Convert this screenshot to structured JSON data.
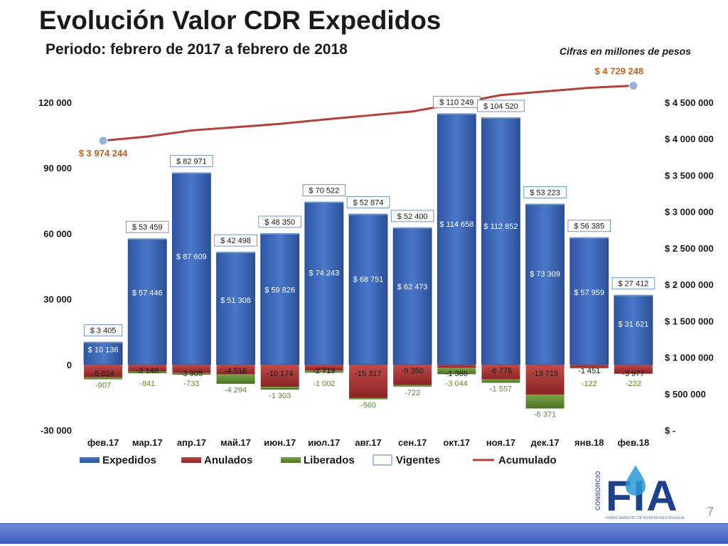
{
  "header": {
    "title": "Evolución Valor CDR Expedidos",
    "subtitle": "Periodo:  febrero de 2017 a febrero de 2018",
    "note": "Cifras en millones de pesos"
  },
  "page_number": "7",
  "logo": {
    "letters": "FIA",
    "vertical_text": "CONSORCIO",
    "tagline": "FINANCIAMIENTO DE INVERSIONES EN AGUA"
  },
  "colors": {
    "expedidos": "#3a64b4",
    "anulados": "#a83232",
    "liberados": "#5f8a2e",
    "vigentes_border": "#6f95c8",
    "acumulado": "#b5403a",
    "endpoint_marker": "#95b3d7",
    "first_last_label": "#c0621e"
  },
  "chart_data": {
    "type": "bar",
    "categories": [
      "фев.17",
      "мар.17",
      "апр.17",
      "май.17",
      "июн.17",
      "июл.17",
      "авг.17",
      "сен.17",
      "окт.17",
      "ноя.17",
      "дек.17",
      "янв.18",
      "фев.18"
    ],
    "series": [
      {
        "name": "Expedidos",
        "values": [
          10136,
          57446,
          87609,
          51308,
          59826,
          74243,
          68751,
          62473,
          114658,
          112852,
          73309,
          57959,
          31621
        ],
        "labels": [
          "$ 10 136",
          "$ 57 446",
          "$ 87 609",
          "$ 51 308",
          "$ 59 826",
          "$ 74 243",
          "$ 68 751",
          "$ 62 473",
          "$ 114 658",
          "$ 112 852",
          "$ 73 309",
          "$ 57 959",
          "$ 31 621"
        ]
      },
      {
        "name": "Anulados",
        "values": [
          -5824,
          -3146,
          -3905,
          -4516,
          -10174,
          -2719,
          -15317,
          -9350,
          -1366,
          -6776,
          -13715,
          -1451,
          -3977
        ],
        "labels": [
          "-5 824",
          "-3 146",
          "-3 905",
          "-4 516",
          "-10 174",
          "-2 719",
          "-15 317",
          "-9 350",
          "-1 366",
          "-6 776",
          "-13 715",
          "-1 451",
          "-3 977"
        ]
      },
      {
        "name": "Liberados",
        "values": [
          -907,
          -841,
          -733,
          -4294,
          -1303,
          -1002,
          -560,
          -722,
          -3044,
          -1557,
          -6371,
          -122,
          -232
        ],
        "labels": [
          "-907",
          "-841",
          "-733",
          "-4 294",
          "-1 303",
          "-1 002",
          "-560",
          "-722",
          "-3 044",
          "-1 557",
          "-6 371",
          "-122",
          "-232"
        ]
      },
      {
        "name": "Vigentes",
        "values": [
          3405,
          53459,
          82971,
          42498,
          48350,
          70522,
          52874,
          52400,
          110249,
          104520,
          53223,
          56385,
          27412
        ],
        "labels": [
          "$ 3 405",
          "$ 53 459",
          "$ 82 971",
          "$ 42 498",
          "$ 48 350",
          "$ 70 522",
          "$ 52 874",
          "$ 52 400",
          "$ 110 249",
          "$ 104 520",
          "$ 53 223",
          "$ 56 385",
          "$ 27 412"
        ]
      },
      {
        "name": "Acumulado",
        "axis": "right",
        "values": [
          3974244,
          4030000,
          4115000,
          4160000,
          4205000,
          4265000,
          4320000,
          4375000,
          4485000,
          4600000,
          4650000,
          4700000,
          4729248
        ],
        "endpoint_labels": {
          "first": "$ 3 974 244",
          "last": "$ 4 729 248"
        }
      }
    ],
    "y_left": {
      "ylim": [
        -30000,
        120000
      ],
      "ticks": [
        -30000,
        0,
        30000,
        60000,
        90000,
        120000
      ],
      "tick_labels": [
        "-30 000",
        "0",
        "30 000",
        "60 000",
        "90 000",
        "120 000"
      ]
    },
    "y_right": {
      "ylim": [
        0,
        4500000
      ],
      "ticks": [
        0,
        500000,
        1000000,
        1500000,
        2000000,
        2500000,
        3000000,
        3500000,
        4000000,
        4500000
      ],
      "tick_labels": [
        "$ -",
        "$ 500 000",
        "$ 1 000 000",
        "$ 1 500 000",
        "$ 2 000 000",
        "$ 2 500 000",
        "$ 3 000 000",
        "$ 3 500 000",
        "$ 4 000 000",
        "$ 4 500 000"
      ]
    },
    "legend": {
      "position": "bottom",
      "items": [
        "Expedidos",
        "Anulados",
        "Liberados",
        "Vigentes",
        "Acumulado"
      ]
    },
    "grid": false
  }
}
